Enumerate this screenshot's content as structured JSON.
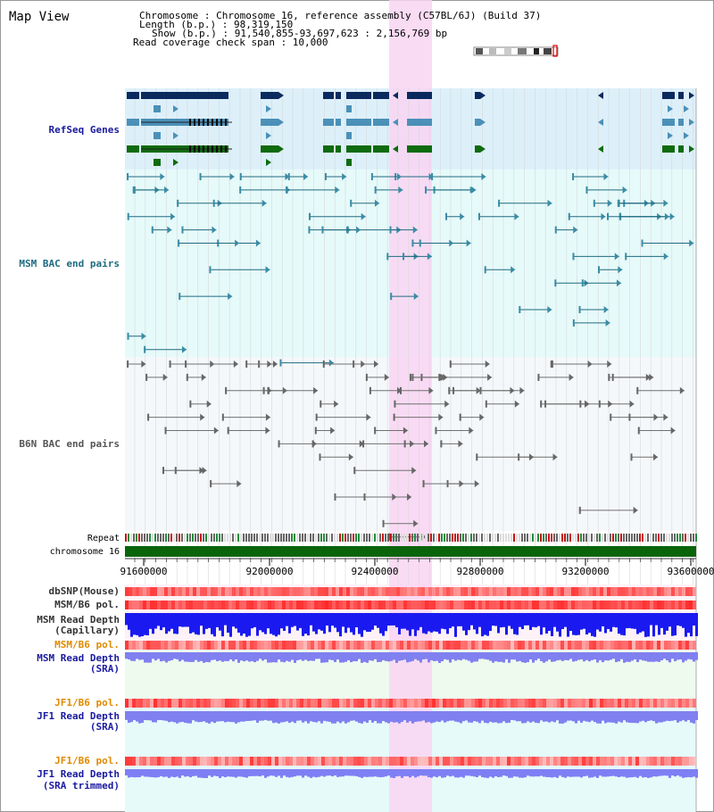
{
  "title": "Map View",
  "header": {
    "lines": [
      "Chromosome    : Chromosome 16, reference assembly (C57BL/6J) (Build 37)",
      "Length (b.p.) : 98,319,150",
      "Show (b.p.) : 91,540,855-93,697,623 : 2,156,769 bp",
      "Read coverage check span : 10,000"
    ]
  },
  "tracks": {
    "refseq": "RefSeq Genes",
    "msm_bac": "MSM BAC end pairs",
    "b6n_bac": "B6N BAC end pairs",
    "repeat": "Repeat",
    "chromosome": "chromosome 16",
    "dbsnp": "dbSNP(Mouse)",
    "msm_b6_pol": "MSM/B6 pol.",
    "msm_depth_cap_1": "MSM Read Depth",
    "msm_depth_cap_2": "(Capillary)",
    "msm_b6_pol_2": "MSM/B6 pol.",
    "msm_depth_sra_1": "MSM Read Depth",
    "msm_depth_sra_2": "(SRA)",
    "jf1_b6_pol": "JF1/B6 pol.",
    "jf1_depth_sra_1": "JF1 Read Depth",
    "jf1_depth_sra_2": "(SRA)",
    "jf1_b6_pol_2": "JF1/B6 pol.",
    "jf1_depth_trim_1": "JF1 Read Depth",
    "jf1_depth_trim_2": "(SRA trimmed)"
  },
  "ruler": [
    "91600000",
    "92000000",
    "92400000",
    "92800000",
    "93200000",
    "93600000"
  ],
  "colors": {
    "refseq_bg": "#ddf0fa",
    "msm_bac_bg": "#e6fafa",
    "b6n_bac_bg": "#f5f8fb",
    "highlight": "#f9d5f2",
    "gene_navy": "#0a2a5e",
    "gene_teal": "#4b90b8",
    "gene_green": "#0e6b0e",
    "msm_line": "#1e6b80",
    "b6n_line": "#707070",
    "chrom_green": "#0a640a",
    "label_blue": "#1a1aa0",
    "label_orange": "#e08a00",
    "depth_cap": "#1a1af0",
    "depth_sra": "#8080f0"
  }
}
